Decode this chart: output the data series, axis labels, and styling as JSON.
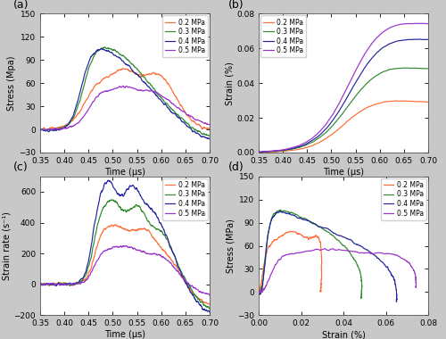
{
  "colors": {
    "0.2 MPa": "#FF6B35",
    "0.3 MPa": "#2E8B2E",
    "0.4 MPa": "#2525A0",
    "0.5 MPa": "#9932CC"
  },
  "labels": [
    "0.2 MPa",
    "0.3 MPa",
    "0.4 MPa",
    "0.5 MPa"
  ],
  "fig_bg": "#c8c8c8",
  "subplot_bg": "#ffffff",
  "panel_labels": [
    "(a)",
    "(b)",
    "(c)",
    "(d)"
  ],
  "a_xlabel": "Time (μs)",
  "a_ylabel": "Stress (Mpa)",
  "a_xlim": [
    0.35,
    0.7
  ],
  "a_ylim": [
    -30,
    150
  ],
  "a_xticks": [
    0.35,
    0.4,
    0.45,
    0.5,
    0.55,
    0.6,
    0.65,
    0.7
  ],
  "a_yticks": [
    -30,
    0,
    30,
    60,
    90,
    120,
    150
  ],
  "b_xlabel": "Time (μs)",
  "b_ylabel": "Strain (%)",
  "b_xlim": [
    0.35,
    0.7
  ],
  "b_ylim": [
    0.0,
    0.08
  ],
  "b_xticks": [
    0.35,
    0.4,
    0.45,
    0.5,
    0.55,
    0.6,
    0.65,
    0.7
  ],
  "b_yticks": [
    0.0,
    0.02,
    0.04,
    0.06,
    0.08
  ],
  "c_xlabel": "Time (μs)",
  "c_ylabel": "Strain rate (s⁻¹)",
  "c_xlim": [
    0.35,
    0.7
  ],
  "c_ylim": [
    -200,
    700
  ],
  "c_xticks": [
    0.35,
    0.4,
    0.45,
    0.5,
    0.55,
    0.6,
    0.65,
    0.7
  ],
  "c_yticks": [
    -200,
    0,
    200,
    400,
    600
  ],
  "d_xlabel": "Strain (%)",
  "d_ylabel": "Stress (MPa)",
  "d_xlim": [
    0.0,
    0.08
  ],
  "d_ylim": [
    -30,
    150
  ],
  "d_xticks": [
    0.0,
    0.02,
    0.04,
    0.06,
    0.08
  ],
  "d_yticks": [
    -30,
    0,
    30,
    60,
    90,
    120,
    150
  ]
}
